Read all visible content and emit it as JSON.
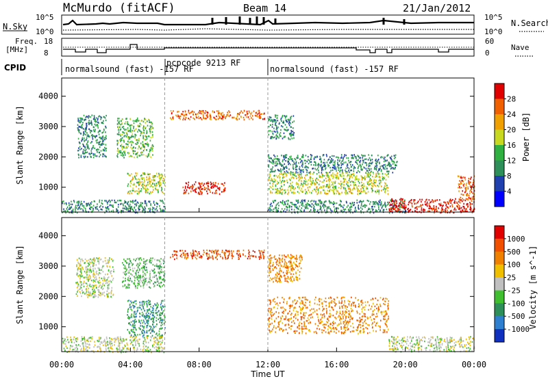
{
  "header": {
    "station": "McMurdo (fitACF)",
    "beam": "Beam 14",
    "date": "21/Jan/2012"
  },
  "top_panels": {
    "nsky_label": "N.Sky",
    "nsearch_label": "N.Search",
    "nsky_ticks": [
      "10^5",
      "10^0"
    ],
    "freq_label": "Freq.",
    "freq_unit": "[MHz]",
    "freq_ticks": [
      "18",
      "8"
    ],
    "nave_label": "Nave",
    "nave_ticks": [
      "60",
      "0"
    ],
    "cpid_label": "CPID",
    "cpid_segments": [
      "normalsound (fast) -157 RF",
      "pcpcode 9213 RF",
      "normalsound (fast) -157 RF"
    ]
  },
  "chart_data": [
    {
      "type": "heatmap",
      "title": "",
      "xlabel": "Time UT",
      "ylabel": "Slant Range [km]",
      "x_ticks": [
        "00:00",
        "04:00",
        "08:00",
        "12:00",
        "16:00",
        "20:00",
        "00:00"
      ],
      "xlim": [
        0,
        24
      ],
      "y_ticks": [
        1000,
        2000,
        3000,
        4000
      ],
      "ylim": [
        180,
        4600
      ],
      "colorbar": {
        "label": "Power [dB]",
        "ticks": [
          "4",
          "8",
          "12",
          "16",
          "20",
          "24",
          "28"
        ],
        "colors": [
          "#0000ff",
          "#2040b0",
          "#2f8f5a",
          "#30b040",
          "#c8d820",
          "#f0a000",
          "#f06000",
          "#e00000"
        ]
      },
      "echo_regions": [
        {
          "t0": 0.9,
          "t1": 2.6,
          "r0": 2000,
          "r1": 3400,
          "level": 2
        },
        {
          "t0": 3.2,
          "t1": 5.3,
          "r0": 2000,
          "r1": 3300,
          "level": 3
        },
        {
          "t0": 3.8,
          "t1": 6.0,
          "r0": 800,
          "r1": 1500,
          "level": 4
        },
        {
          "t0": 0.0,
          "t1": 6.0,
          "r0": 180,
          "r1": 600,
          "level": 2
        },
        {
          "t0": 6.3,
          "t1": 11.8,
          "r0": 3250,
          "r1": 3550,
          "level": 6
        },
        {
          "t0": 7.0,
          "t1": 9.5,
          "r0": 800,
          "r1": 1200,
          "level": 7
        },
        {
          "t0": 12.0,
          "t1": 13.5,
          "r0": 2600,
          "r1": 3400,
          "level": 2
        },
        {
          "t0": 12.0,
          "t1": 19.5,
          "r0": 1500,
          "r1": 2100,
          "level": 2
        },
        {
          "t0": 12.0,
          "t1": 19.0,
          "r0": 800,
          "r1": 1500,
          "level": 4
        },
        {
          "t0": 12.0,
          "t1": 20.0,
          "r0": 180,
          "r1": 600,
          "level": 2
        },
        {
          "t0": 19.0,
          "t1": 24.0,
          "r0": 180,
          "r1": 650,
          "level": 7
        },
        {
          "t0": 23.0,
          "t1": 24.0,
          "r0": 600,
          "r1": 1400,
          "level": 6
        }
      ]
    },
    {
      "type": "heatmap",
      "title": "",
      "xlabel": "Time UT",
      "ylabel": "Slant Range [km]",
      "x_ticks": [
        "00:00",
        "04:00",
        "08:00",
        "12:00",
        "16:00",
        "20:00",
        "00:00"
      ],
      "xlim": [
        0,
        24
      ],
      "y_ticks": [
        1000,
        2000,
        3000,
        4000
      ],
      "ylim": [
        180,
        4600
      ],
      "colorbar": {
        "label": "Velocity [m s^-1]",
        "ticks": [
          "1000",
          "500",
          "100",
          "25",
          "-25",
          "-100",
          "-500",
          "-1000"
        ],
        "colors": [
          "#1030c0",
          "#2f7fd0",
          "#2f8f5a",
          "#40c030",
          "#c0c0c0",
          "#f0c000",
          "#f08000",
          "#f05000",
          "#e00000"
        ]
      },
      "echo_regions": [
        {
          "t0": 0.8,
          "t1": 3.0,
          "r0": 2000,
          "r1": 3300,
          "level": 4
        },
        {
          "t0": 3.5,
          "t1": 6.0,
          "r0": 2300,
          "r1": 3300,
          "level": 3
        },
        {
          "t0": 3.8,
          "t1": 6.0,
          "r0": 700,
          "r1": 1900,
          "level": 2
        },
        {
          "t0": 0.0,
          "t1": 6.0,
          "r0": 180,
          "r1": 700,
          "level": 4
        },
        {
          "t0": 6.3,
          "t1": 11.8,
          "r0": 3250,
          "r1": 3550,
          "level": 7
        },
        {
          "t0": 12.0,
          "t1": 19.0,
          "r0": 800,
          "r1": 2000,
          "level": 6
        },
        {
          "t0": 12.0,
          "t1": 14.0,
          "r0": 2500,
          "r1": 3400,
          "level": 6
        },
        {
          "t0": 19.0,
          "t1": 24.0,
          "r0": 200,
          "r1": 700,
          "level": 4
        }
      ]
    }
  ]
}
